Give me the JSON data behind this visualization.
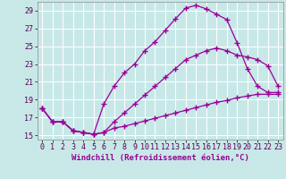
{
  "background_color": "#c8e8e8",
  "grid_color": "#ffffff",
  "line_color": "#990099",
  "xlabel": "Windchill (Refroidissement éolien,°C)",
  "xlim": [
    -0.5,
    23.5
  ],
  "ylim": [
    14.5,
    30.0
  ],
  "yticks": [
    15,
    17,
    19,
    21,
    23,
    25,
    27,
    29
  ],
  "xticks": [
    0,
    1,
    2,
    3,
    4,
    5,
    6,
    7,
    8,
    9,
    10,
    11,
    12,
    13,
    14,
    15,
    16,
    17,
    18,
    19,
    20,
    21,
    22,
    23
  ],
  "line_top_x": [
    0,
    1,
    2,
    3,
    4,
    5,
    6,
    7,
    8,
    9,
    10,
    11,
    12,
    13,
    14,
    15,
    16,
    17,
    18,
    19,
    20,
    21,
    22,
    23
  ],
  "line_top_y": [
    18.0,
    16.5,
    16.5,
    15.5,
    15.3,
    15.1,
    18.5,
    20.5,
    22.0,
    23.0,
    24.5,
    25.5,
    26.8,
    28.1,
    29.3,
    29.6,
    29.2,
    28.6,
    28.0,
    25.4,
    22.5,
    20.5,
    19.8,
    19.8
  ],
  "line_mid_x": [
    0,
    1,
    2,
    3,
    4,
    5,
    6,
    7,
    8,
    9,
    10,
    11,
    12,
    13,
    14,
    15,
    16,
    17,
    18,
    19,
    20,
    21,
    22,
    23
  ],
  "line_mid_y": [
    18.0,
    16.5,
    16.5,
    15.5,
    15.3,
    15.1,
    15.3,
    16.5,
    17.5,
    18.5,
    19.5,
    20.5,
    21.5,
    22.5,
    23.5,
    24.0,
    24.5,
    24.8,
    24.5,
    24.0,
    23.8,
    23.5,
    22.8,
    20.5
  ],
  "line_bot_x": [
    0,
    1,
    2,
    3,
    4,
    5,
    6,
    7,
    8,
    9,
    10,
    11,
    12,
    13,
    14,
    15,
    16,
    17,
    18,
    19,
    20,
    21,
    22,
    23
  ],
  "line_bot_y": [
    18.0,
    16.5,
    16.5,
    15.5,
    15.3,
    15.1,
    15.3,
    15.8,
    16.0,
    16.3,
    16.6,
    16.9,
    17.2,
    17.5,
    17.8,
    18.1,
    18.4,
    18.7,
    18.9,
    19.2,
    19.4,
    19.6,
    19.6,
    19.6
  ],
  "marker": "+",
  "markersize": 4,
  "markeredgewidth": 1.0,
  "linewidth": 0.9,
  "xlabel_fontsize": 6.5,
  "tick_fontsize": 6.0
}
